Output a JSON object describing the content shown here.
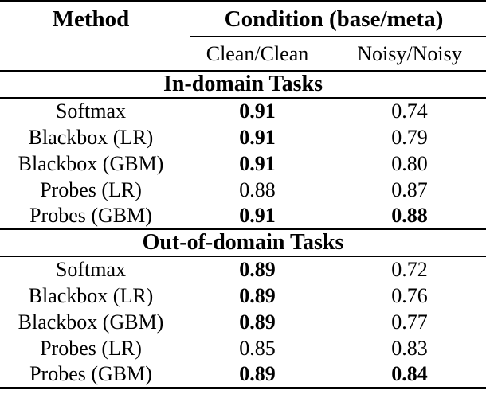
{
  "colors": {
    "background": "#ffffff",
    "text": "#000000",
    "rule": "#000000"
  },
  "table": {
    "header": {
      "method_label": "Method",
      "condition_label": "Condition (base/meta)",
      "subcolumns": [
        "Clean/Clean",
        "Noisy/Noisy"
      ]
    },
    "sections": [
      {
        "title": "In-domain Tasks",
        "rows": [
          {
            "method": "Softmax",
            "values": [
              {
                "text": "0.91",
                "bold": true
              },
              {
                "text": "0.74",
                "bold": false
              }
            ]
          },
          {
            "method": "Blackbox (LR)",
            "values": [
              {
                "text": "0.91",
                "bold": true
              },
              {
                "text": "0.79",
                "bold": false
              }
            ]
          },
          {
            "method": "Blackbox (GBM)",
            "values": [
              {
                "text": "0.91",
                "bold": true
              },
              {
                "text": "0.80",
                "bold": false
              }
            ]
          },
          {
            "method": "Probes (LR)",
            "values": [
              {
                "text": "0.88",
                "bold": false
              },
              {
                "text": "0.87",
                "bold": false
              }
            ]
          },
          {
            "method": "Probes (GBM)",
            "values": [
              {
                "text": "0.91",
                "bold": true
              },
              {
                "text": "0.88",
                "bold": true
              }
            ]
          }
        ]
      },
      {
        "title": "Out-of-domain Tasks",
        "rows": [
          {
            "method": "Softmax",
            "values": [
              {
                "text": "0.89",
                "bold": true
              },
              {
                "text": "0.72",
                "bold": false
              }
            ]
          },
          {
            "method": "Blackbox (LR)",
            "values": [
              {
                "text": "0.89",
                "bold": true
              },
              {
                "text": "0.76",
                "bold": false
              }
            ]
          },
          {
            "method": "Blackbox (GBM)",
            "values": [
              {
                "text": "0.89",
                "bold": true
              },
              {
                "text": "0.77",
                "bold": false
              }
            ]
          },
          {
            "method": "Probes (LR)",
            "values": [
              {
                "text": "0.85",
                "bold": false
              },
              {
                "text": "0.83",
                "bold": false
              }
            ]
          },
          {
            "method": "Probes (GBM)",
            "values": [
              {
                "text": "0.89",
                "bold": true
              },
              {
                "text": "0.84",
                "bold": true
              }
            ]
          }
        ]
      }
    ]
  }
}
